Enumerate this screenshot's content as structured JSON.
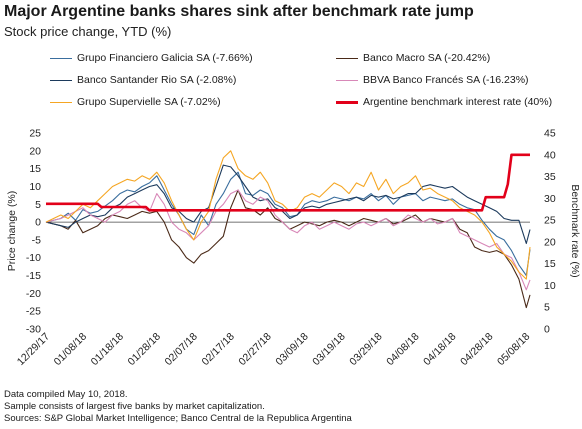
{
  "header": {
    "title": "Major Argentine banks shares sink after benchmark rate jump",
    "subtitle": "Stock price change, YTD (%)"
  },
  "notes": [
    "Data compiled May 10, 2018.",
    "Sample consists of largest five banks by market capitalization.",
    "Sources: S&P Global Market Intelligence; Banco Central de la Republica Argentina"
  ],
  "chart_data": {
    "type": "line",
    "xlabel": "",
    "ylabel": "Price change (%)",
    "ylabel_right": "Benchmark rate (%)",
    "ylim": [
      -30,
      25
    ],
    "ylim_right": [
      0,
      45
    ],
    "yticks": [
      -30,
      -25,
      -20,
      -15,
      -10,
      -5,
      0,
      5,
      10,
      15,
      20,
      25
    ],
    "yticks_right": [
      0,
      5,
      10,
      15,
      20,
      25,
      30,
      35,
      40,
      45
    ],
    "xlim": [
      "2017-12-29",
      "2018-05-09"
    ],
    "xticks": [
      "12/29/17",
      "01/08/18",
      "01/18/18",
      "01/28/18",
      "02/07/18",
      "02/17/18",
      "02/27/18",
      "03/09/18",
      "03/19/18",
      "03/29/18",
      "04/08/18",
      "04/18/18",
      "04/28/18",
      "05/08/18"
    ],
    "xtick_dates": [
      "2017-12-29",
      "2018-01-08",
      "2018-01-18",
      "2018-01-28",
      "2018-02-07",
      "2018-02-17",
      "2018-02-27",
      "2018-03-09",
      "2018-03-19",
      "2018-03-29",
      "2018-04-08",
      "2018-04-18",
      "2018-04-28",
      "2018-05-08"
    ],
    "grid": false,
    "legend_position": "top",
    "series": [
      {
        "name": "Grupo Financiero Galicia SA (-7.66%)",
        "color": "#3a6e9e",
        "axis": "left",
        "x": [
          "2017-12-29",
          "2018-01-02",
          "2018-01-04",
          "2018-01-06",
          "2018-01-08",
          "2018-01-10",
          "2018-01-12",
          "2018-01-14",
          "2018-01-16",
          "2018-01-18",
          "2018-01-20",
          "2018-01-22",
          "2018-01-24",
          "2018-01-26",
          "2018-01-28",
          "2018-01-30",
          "2018-02-01",
          "2018-02-03",
          "2018-02-05",
          "2018-02-07",
          "2018-02-09",
          "2018-02-11",
          "2018-02-13",
          "2018-02-15",
          "2018-02-17",
          "2018-02-19",
          "2018-02-21",
          "2018-02-23",
          "2018-02-25",
          "2018-02-27",
          "2018-03-01",
          "2018-03-03",
          "2018-03-05",
          "2018-03-07",
          "2018-03-09",
          "2018-03-11",
          "2018-03-13",
          "2018-03-15",
          "2018-03-17",
          "2018-03-19",
          "2018-03-21",
          "2018-03-23",
          "2018-03-25",
          "2018-03-27",
          "2018-03-29",
          "2018-03-31",
          "2018-04-02",
          "2018-04-04",
          "2018-04-06",
          "2018-04-08",
          "2018-04-10",
          "2018-04-12",
          "2018-04-14",
          "2018-04-16",
          "2018-04-18",
          "2018-04-20",
          "2018-04-22",
          "2018-04-24",
          "2018-04-26",
          "2018-04-28",
          "2018-04-30",
          "2018-05-02",
          "2018-05-04",
          "2018-05-06",
          "2018-05-08",
          "2018-05-09"
        ],
        "values": [
          0,
          1.0,
          2.5,
          0.5,
          3.5,
          2.5,
          3.0,
          4.5,
          6.0,
          8.0,
          9.0,
          8.5,
          10.0,
          11.0,
          13.0,
          9.0,
          5.0,
          2.0,
          -2.0,
          -3.5,
          2.0,
          -1.0,
          5.0,
          8.0,
          12.0,
          14.0,
          8.0,
          7.5,
          9.0,
          8.0,
          5.0,
          4.0,
          1.5,
          2.0,
          5.0,
          6.0,
          5.5,
          6.0,
          7.0,
          6.5,
          6.0,
          7.0,
          6.5,
          8.0,
          6.0,
          7.5,
          5.0,
          7.0,
          7.5,
          8.0,
          6.0,
          7.0,
          6.5,
          6.0,
          6.5,
          5.0,
          4.0,
          3.5,
          0.5,
          -2.0,
          -4.0,
          -5.0,
          -8.0,
          -12.0,
          -15.0,
          -7.66
        ]
      },
      {
        "name": "Banco Macro SA (-20.42%)",
        "color": "#4a2a18",
        "axis": "left",
        "x": [
          "2017-12-29",
          "2018-01-02",
          "2018-01-04",
          "2018-01-06",
          "2018-01-08",
          "2018-01-10",
          "2018-01-12",
          "2018-01-14",
          "2018-01-16",
          "2018-01-18",
          "2018-01-20",
          "2018-01-22",
          "2018-01-24",
          "2018-01-26",
          "2018-01-28",
          "2018-01-30",
          "2018-02-01",
          "2018-02-03",
          "2018-02-05",
          "2018-02-07",
          "2018-02-09",
          "2018-02-11",
          "2018-02-13",
          "2018-02-15",
          "2018-02-17",
          "2018-02-19",
          "2018-02-21",
          "2018-02-23",
          "2018-02-25",
          "2018-02-27",
          "2018-03-01",
          "2018-03-03",
          "2018-03-05",
          "2018-03-07",
          "2018-03-09",
          "2018-03-11",
          "2018-03-13",
          "2018-03-15",
          "2018-03-17",
          "2018-03-19",
          "2018-03-21",
          "2018-03-23",
          "2018-03-25",
          "2018-03-27",
          "2018-03-29",
          "2018-03-31",
          "2018-04-02",
          "2018-04-04",
          "2018-04-06",
          "2018-04-08",
          "2018-04-10",
          "2018-04-12",
          "2018-04-14",
          "2018-04-16",
          "2018-04-18",
          "2018-04-20",
          "2018-04-22",
          "2018-04-24",
          "2018-04-26",
          "2018-04-28",
          "2018-04-30",
          "2018-05-02",
          "2018-05-04",
          "2018-05-06",
          "2018-05-08",
          "2018-05-09"
        ],
        "values": [
          0,
          -1.0,
          -2.0,
          0.5,
          -3.0,
          -2.0,
          -1.0,
          1.0,
          2.0,
          1.5,
          1.0,
          2.0,
          3.0,
          2.5,
          3.0,
          0.0,
          -5.0,
          -7.0,
          -10.0,
          -11.5,
          -9.0,
          -8.0,
          -6.0,
          -4.0,
          4.0,
          9.0,
          4.0,
          3.5,
          2.0,
          4.0,
          1.0,
          0.0,
          -2.0,
          -1.0,
          0.0,
          -0.5,
          -1.0,
          0.0,
          0.5,
          0.0,
          -1.0,
          0.0,
          1.0,
          0.5,
          0.0,
          1.0,
          -0.5,
          0.0,
          1.0,
          2.0,
          0.0,
          1.0,
          0.5,
          0.0,
          1.0,
          -2.0,
          -3.0,
          -7.0,
          -8.0,
          -8.5,
          -8.0,
          -9.0,
          -12.0,
          -16.0,
          -24.0,
          -20.42
        ]
      },
      {
        "name": "Banco Santander Rio SA (-2.08%)",
        "color": "#1c3a5c",
        "axis": "left",
        "x": [
          "2017-12-29",
          "2018-01-02",
          "2018-01-04",
          "2018-01-06",
          "2018-01-08",
          "2018-01-10",
          "2018-01-12",
          "2018-01-14",
          "2018-01-16",
          "2018-01-18",
          "2018-01-20",
          "2018-01-22",
          "2018-01-24",
          "2018-01-26",
          "2018-01-28",
          "2018-01-30",
          "2018-02-01",
          "2018-02-03",
          "2018-02-05",
          "2018-02-07",
          "2018-02-09",
          "2018-02-11",
          "2018-02-13",
          "2018-02-15",
          "2018-02-17",
          "2018-02-19",
          "2018-02-21",
          "2018-02-23",
          "2018-02-25",
          "2018-02-27",
          "2018-03-01",
          "2018-03-03",
          "2018-03-05",
          "2018-03-07",
          "2018-03-09",
          "2018-03-11",
          "2018-03-13",
          "2018-03-15",
          "2018-03-17",
          "2018-03-19",
          "2018-03-21",
          "2018-03-23",
          "2018-03-25",
          "2018-03-27",
          "2018-03-29",
          "2018-03-31",
          "2018-04-02",
          "2018-04-04",
          "2018-04-06",
          "2018-04-08",
          "2018-04-10",
          "2018-04-12",
          "2018-04-14",
          "2018-04-16",
          "2018-04-18",
          "2018-04-20",
          "2018-04-22",
          "2018-04-24",
          "2018-04-26",
          "2018-04-28",
          "2018-04-30",
          "2018-05-02",
          "2018-05-04",
          "2018-05-06",
          "2018-05-08",
          "2018-05-09"
        ],
        "values": [
          0,
          -1.0,
          -1.5,
          0.0,
          1.0,
          2.0,
          1.5,
          2.0,
          4.0,
          5.0,
          7.0,
          8.0,
          9.0,
          10.0,
          10.5,
          8.0,
          4.0,
          3.0,
          1.0,
          0.0,
          3.0,
          4.0,
          10.0,
          16.0,
          15.5,
          13.0,
          10.0,
          7.0,
          6.0,
          6.5,
          4.0,
          3.0,
          1.0,
          2.0,
          4.0,
          4.5,
          4.0,
          5.0,
          5.5,
          6.0,
          6.5,
          7.0,
          6.0,
          7.5,
          7.0,
          7.5,
          6.5,
          7.0,
          8.0,
          8.0,
          10.0,
          10.5,
          10.0,
          9.5,
          10.0,
          8.5,
          7.0,
          6.0,
          5.0,
          4.0,
          3.0,
          1.0,
          0.5,
          0.5,
          -6.0,
          -2.08
        ]
      },
      {
        "name": "BBVA Banco Francés SA (-16.23%)",
        "color": "#d888b8",
        "axis": "left",
        "x": [
          "2017-12-29",
          "2018-01-02",
          "2018-01-04",
          "2018-01-06",
          "2018-01-08",
          "2018-01-10",
          "2018-01-12",
          "2018-01-14",
          "2018-01-16",
          "2018-01-18",
          "2018-01-20",
          "2018-01-22",
          "2018-01-24",
          "2018-01-26",
          "2018-01-28",
          "2018-01-30",
          "2018-02-01",
          "2018-02-03",
          "2018-02-05",
          "2018-02-07",
          "2018-02-09",
          "2018-02-11",
          "2018-02-13",
          "2018-02-15",
          "2018-02-17",
          "2018-02-19",
          "2018-02-21",
          "2018-02-23",
          "2018-02-25",
          "2018-02-27",
          "2018-03-01",
          "2018-03-03",
          "2018-03-05",
          "2018-03-07",
          "2018-03-09",
          "2018-03-11",
          "2018-03-13",
          "2018-03-15",
          "2018-03-17",
          "2018-03-19",
          "2018-03-21",
          "2018-03-23",
          "2018-03-25",
          "2018-03-27",
          "2018-03-29",
          "2018-03-31",
          "2018-04-02",
          "2018-04-04",
          "2018-04-06",
          "2018-04-08",
          "2018-04-10",
          "2018-04-12",
          "2018-04-14",
          "2018-04-16",
          "2018-04-18",
          "2018-04-20",
          "2018-04-22",
          "2018-04-24",
          "2018-04-26",
          "2018-04-28",
          "2018-04-30",
          "2018-05-02",
          "2018-05-04",
          "2018-05-06",
          "2018-05-08",
          "2018-05-09"
        ],
        "values": [
          0,
          1.0,
          2.0,
          3.0,
          4.0,
          2.0,
          1.0,
          0.0,
          2.0,
          3.0,
          5.0,
          6.0,
          4.0,
          3.0,
          8.0,
          5.0,
          0.0,
          -2.0,
          -3.0,
          -5.0,
          -3.0,
          -1.0,
          3.0,
          5.0,
          8.0,
          9.0,
          6.0,
          5.0,
          7.0,
          6.0,
          2.0,
          0.0,
          -2.0,
          -3.0,
          -1.0,
          0.0,
          -2.0,
          -1.0,
          0.0,
          -1.0,
          -2.0,
          -0.5,
          0.0,
          -1.0,
          0.0,
          1.0,
          -1.0,
          0.0,
          2.0,
          1.0,
          0.0,
          1.0,
          -0.5,
          0.0,
          1.0,
          -3.0,
          -4.0,
          -5.0,
          -6.0,
          -7.0,
          -6.0,
          -9.0,
          -10.0,
          -14.0,
          -19.0,
          -16.23
        ]
      },
      {
        "name": "Grupo Supervielle SA (-7.02%)",
        "color": "#f5a623",
        "axis": "left",
        "x": [
          "2017-12-29",
          "2018-01-02",
          "2018-01-04",
          "2018-01-06",
          "2018-01-08",
          "2018-01-10",
          "2018-01-12",
          "2018-01-14",
          "2018-01-16",
          "2018-01-18",
          "2018-01-20",
          "2018-01-22",
          "2018-01-24",
          "2018-01-26",
          "2018-01-28",
          "2018-01-30",
          "2018-02-01",
          "2018-02-03",
          "2018-02-05",
          "2018-02-07",
          "2018-02-09",
          "2018-02-11",
          "2018-02-13",
          "2018-02-15",
          "2018-02-17",
          "2018-02-19",
          "2018-02-21",
          "2018-02-23",
          "2018-02-25",
          "2018-02-27",
          "2018-03-01",
          "2018-03-03",
          "2018-03-05",
          "2018-03-07",
          "2018-03-09",
          "2018-03-11",
          "2018-03-13",
          "2018-03-15",
          "2018-03-17",
          "2018-03-19",
          "2018-03-21",
          "2018-03-23",
          "2018-03-25",
          "2018-03-27",
          "2018-03-29",
          "2018-03-31",
          "2018-04-02",
          "2018-04-04",
          "2018-04-06",
          "2018-04-08",
          "2018-04-10",
          "2018-04-12",
          "2018-04-14",
          "2018-04-16",
          "2018-04-18",
          "2018-04-20",
          "2018-04-22",
          "2018-04-24",
          "2018-04-26",
          "2018-04-28",
          "2018-04-30",
          "2018-05-02",
          "2018-05-04",
          "2018-05-06",
          "2018-05-08",
          "2018-05-09"
        ],
        "values": [
          0,
          2.0,
          1.0,
          3.0,
          5.0,
          4.0,
          6.0,
          8.0,
          10.0,
          11.0,
          12.0,
          11.5,
          13.0,
          12.0,
          14.0,
          11.0,
          6.0,
          2.0,
          -2.0,
          -5.0,
          0.0,
          3.0,
          12.0,
          18.0,
          20.0,
          15.0,
          13.0,
          12.0,
          14.0,
          11.0,
          6.0,
          5.0,
          3.0,
          4.0,
          7.0,
          8.0,
          7.0,
          9.0,
          11.0,
          10.0,
          8.0,
          11.0,
          10.0,
          14.0,
          9.0,
          12.0,
          8.0,
          10.0,
          11.0,
          13.0,
          9.0,
          9.5,
          8.0,
          7.0,
          6.0,
          4.0,
          3.0,
          2.0,
          0.0,
          -3.0,
          -7.0,
          -9.0,
          -11.0,
          -14.0,
          -16.0,
          -7.02
        ]
      },
      {
        "name": "Argentine benchmark interest rate (40%)",
        "color": "#e2001a",
        "axis": "right",
        "x": [
          "2017-12-29",
          "2018-01-12",
          "2018-01-13",
          "2018-01-25",
          "2018-01-26",
          "2018-04-26",
          "2018-04-27",
          "2018-05-02",
          "2018-05-03",
          "2018-05-04",
          "2018-05-09"
        ],
        "values": [
          28.75,
          28.75,
          28.0,
          28.0,
          27.25,
          27.25,
          30.25,
          30.25,
          33.25,
          40.0,
          40.0
        ]
      }
    ]
  }
}
